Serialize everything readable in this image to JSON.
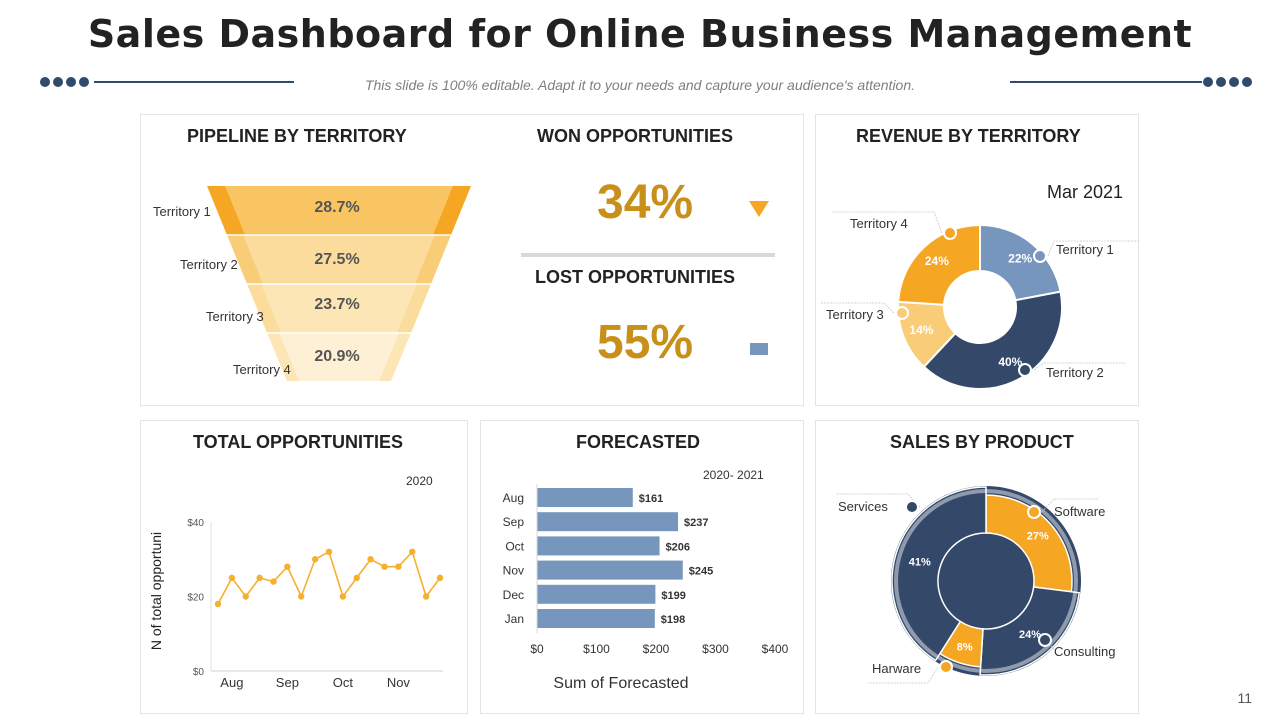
{
  "header": {
    "title": "Sales Dashboard for Online Business Management",
    "subtitle": "This slide is 100% editable. Adapt it to your needs and capture your audience's attention."
  },
  "colors": {
    "navy": "#34496a",
    "steel": "#7796bd",
    "gold": "#f5a623",
    "light_gold": "#f9cc78",
    "amber_text": "#c8901a"
  },
  "pipeline": {
    "title": "PIPELINE BY TERRITORY",
    "rows": [
      {
        "label": "Territory  1",
        "pct": "28.7%"
      },
      {
        "label": "Territory  2",
        "pct": "27.5%"
      },
      {
        "label": "Territory  3",
        "pct": "23.7%"
      },
      {
        "label": "Territory  4",
        "pct": "20.9%"
      }
    ]
  },
  "won": {
    "title": "WON OPPORTUNITIES",
    "value": "34%",
    "icon": "triangle-down-icon"
  },
  "lost": {
    "title": "LOST OPPORTUNITIES",
    "value": "55%",
    "icon": "square-icon"
  },
  "revenue": {
    "title": "REVENUE BY TERRITORY",
    "period": "Mar 2021"
  },
  "total": {
    "title": "TOTAL OPPORTUNITIES",
    "year": "2020"
  },
  "forecast": {
    "title": "FORECASTED",
    "period": "2020- 2021"
  },
  "sales": {
    "title": "SALES BY PRODUCT"
  },
  "page_number": "11",
  "chart_data": [
    {
      "type": "pie",
      "name": "pipeline-by-territory-funnel",
      "labels": [
        "Territory  1",
        "Territory  2",
        "Territory  3",
        "Territory  4"
      ],
      "values": [
        28.7,
        27.5,
        23.7,
        20.9
      ]
    },
    {
      "type": "pie",
      "name": "revenue-by-territory-donut",
      "labels": [
        "Territory  1",
        "Territory  2",
        "Territory  3",
        "Territory  4"
      ],
      "values": [
        22,
        40,
        14,
        24
      ],
      "value_labels": [
        "22%",
        "40%",
        "14%",
        "24%"
      ],
      "colors": [
        "#7796bd",
        "#34496a",
        "#f9cc78",
        "#f5a623"
      ]
    },
    {
      "type": "line",
      "name": "total-opportunities",
      "ylabel": "N of total opportuni",
      "y": [
        18,
        25,
        20,
        25,
        24,
        28,
        20,
        30,
        32,
        20,
        25,
        30,
        28,
        28,
        32,
        20,
        25
      ],
      "xticks": [
        "Aug",
        "Sep",
        "Oct",
        "Nov"
      ],
      "xtick_positions": [
        1,
        5,
        9,
        13
      ],
      "yticks": [
        0,
        20,
        40
      ],
      "ytick_labels": [
        "$0",
        "$20",
        "$40"
      ],
      "ylim": [
        0,
        40
      ],
      "color": "#f5b02e"
    },
    {
      "type": "bar",
      "orientation": "horizontal",
      "name": "forecasted",
      "categories": [
        "Aug",
        "Sep",
        "Oct",
        "Nov",
        "Dec",
        "Jan"
      ],
      "values": [
        161,
        237,
        206,
        245,
        199,
        198
      ],
      "value_labels": [
        "$161",
        "$237",
        "$206",
        "$245",
        "$199",
        "$198"
      ],
      "xticks": [
        0,
        100,
        200,
        300,
        400
      ],
      "xtick_labels": [
        "$0",
        "$100",
        "$200",
        "$300",
        "$400"
      ],
      "xlim": [
        0,
        400
      ],
      "xlabel": "Sum of Forecasted",
      "color": "#7796bd"
    },
    {
      "type": "pie",
      "name": "sales-by-product-donut",
      "labels": [
        "Software",
        "Consulting",
        "Harware",
        "Services"
      ],
      "values": [
        27,
        24,
        8,
        41
      ],
      "value_labels": [
        "27%",
        "24%",
        "8%",
        "41%"
      ],
      "colors": [
        "#f5a623",
        "#34496a",
        "#f5a623",
        "#34496a"
      ]
    }
  ]
}
